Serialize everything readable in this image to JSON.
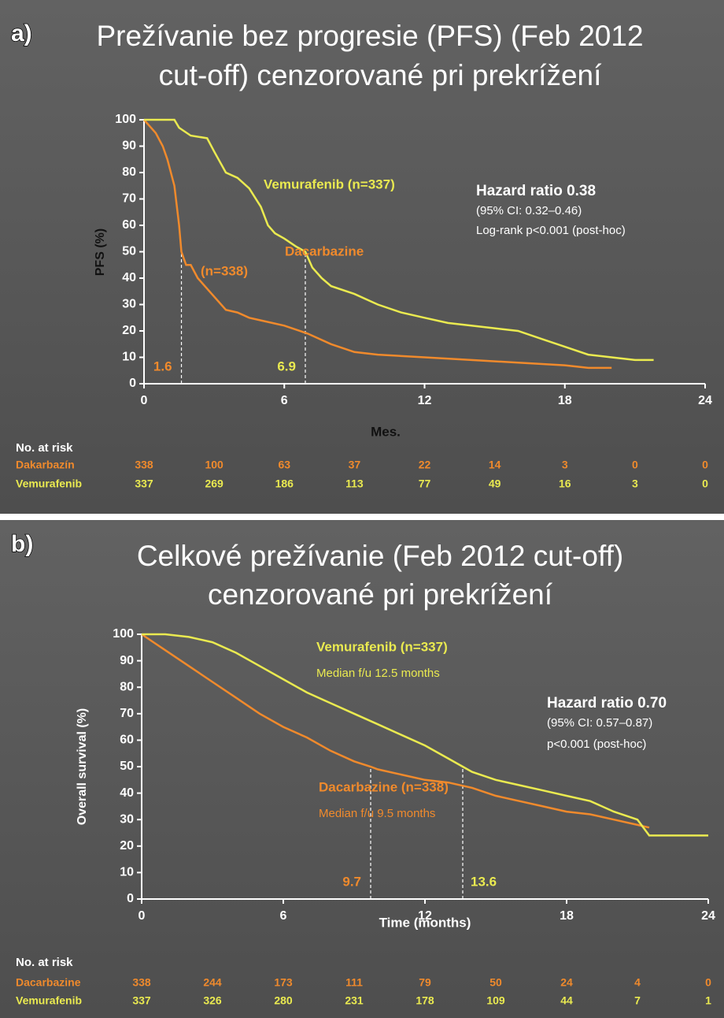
{
  "chart_data": [
    {
      "type": "line",
      "panel": "a)",
      "title": [
        "Prežívanie bez progresie (PFS)  (Feb 2012",
        "cut-off) cenzorované pri prekrížení"
      ],
      "xlabel": "Mes.",
      "ylabel": "PFS (%)",
      "xlim": [
        0,
        24
      ],
      "xticks": [
        0,
        6,
        12,
        18,
        24
      ],
      "ylim": [
        0,
        100
      ],
      "yticks": [
        0,
        10,
        20,
        30,
        40,
        50,
        60,
        70,
        80,
        90,
        100
      ],
      "series": [
        {
          "name": "Dacarbazine",
          "color": "#f08a2c",
          "median": 1.6,
          "x": [
            0,
            0.5,
            0.8,
            1,
            1.3,
            1.5,
            1.6,
            1.8,
            2,
            2.3,
            2.8,
            3.5,
            4,
            4.5,
            5,
            6,
            7,
            8,
            9,
            10,
            12,
            14,
            16,
            18,
            19,
            20
          ],
          "values": [
            100,
            95,
            90,
            85,
            75,
            60,
            50,
            45,
            45,
            40,
            35,
            28,
            27,
            25,
            24,
            22,
            19,
            15,
            12,
            11,
            10,
            9,
            8,
            7,
            6,
            6
          ]
        },
        {
          "name": "Vemurafenib",
          "color": "#eaea50",
          "median": 6.9,
          "x": [
            0,
            1.3,
            1.5,
            2,
            2.7,
            3,
            3.5,
            4,
            4.5,
            5,
            5.3,
            5.6,
            6,
            6.5,
            6.9,
            7.2,
            7.6,
            8,
            9,
            10,
            11,
            12,
            13,
            14,
            15,
            16,
            17,
            18,
            19,
            20,
            21,
            21.8
          ],
          "values": [
            100,
            100,
            97,
            94,
            93,
            88,
            80,
            78,
            74,
            67,
            60,
            57,
            55,
            52,
            50,
            44,
            40,
            37,
            34,
            30,
            27,
            25,
            23,
            22,
            21,
            20,
            17,
            14,
            11,
            10,
            9,
            9
          ]
        }
      ],
      "annotations": [
        "Vemurafenib (n=337)",
        "Dacarbazine",
        "(n=338)",
        "Hazard ratio 0.38",
        "(95% CI:  0.32–0.46)",
        "Log-rank p<0.001 (post-hoc)"
      ],
      "risk_table": {
        "title": "No. at risk",
        "rows": [
          {
            "name": "Dakarbazín",
            "values": [
              338,
              100,
              63,
              37,
              22,
              14,
              3,
              0,
              0
            ]
          },
          {
            "name": "Vemurafenib",
            "values": [
              337,
              269,
              186,
              113,
              77,
              49,
              16,
              3,
              0
            ]
          }
        ]
      }
    },
    {
      "type": "line",
      "panel": "b)",
      "title": [
        "Celkové prežívanie (Feb 2012 cut-off)",
        "cenzorované pri prekrížení"
      ],
      "xlabel": "Time (months)",
      "ylabel": "Overall survival (%)",
      "xlim": [
        0,
        24
      ],
      "xticks": [
        0,
        6,
        12,
        18,
        24
      ],
      "ylim": [
        0,
        100
      ],
      "yticks": [
        0,
        10,
        20,
        30,
        40,
        50,
        60,
        70,
        80,
        90,
        100
      ],
      "series": [
        {
          "name": "Dacarbazine",
          "color": "#f08a2c",
          "median": 9.7,
          "x": [
            0,
            0.5,
            1,
            2,
            3,
            4,
            5,
            6,
            7,
            8,
            9,
            9.7,
            10,
            11,
            12,
            13,
            14,
            15,
            16,
            17,
            18,
            19,
            20,
            21,
            21.5
          ],
          "values": [
            100,
            97,
            94,
            88,
            82,
            76,
            70,
            65,
            61,
            56,
            52,
            50,
            49,
            47,
            45,
            44,
            42,
            39,
            37,
            35,
            33,
            32,
            30,
            28,
            27
          ]
        },
        {
          "name": "Vemurafenib",
          "color": "#eaea50",
          "median": 13.6,
          "x": [
            0,
            1,
            2,
            3,
            4,
            5,
            6,
            7,
            8,
            9,
            10,
            11,
            12,
            13,
            13.6,
            14,
            15,
            16,
            17,
            18,
            19,
            20,
            21,
            21.5,
            24
          ],
          "values": [
            100,
            100,
            99,
            97,
            93,
            88,
            83,
            78,
            74,
            70,
            66,
            62,
            58,
            53,
            50,
            48,
            45,
            43,
            41,
            39,
            37,
            33,
            30,
            24,
            24
          ]
        }
      ],
      "annotations": [
        "Vemurafenib (n=337)",
        "Median  f/u 12.5 months",
        "Hazard ratio 0.70",
        "(95% CI:  0.57–0.87)",
        "p<0.001 (post-hoc)",
        "Dacarbazine (n=338)",
        "Median  f/u 9.5 months"
      ],
      "risk_table": {
        "title": "No. at risk",
        "rows": [
          {
            "name": "Dacarbazine",
            "values": [
              338,
              244,
              173,
              111,
              79,
              50,
              24,
              4,
              0
            ]
          },
          {
            "name": "Vemurafenib",
            "values": [
              337,
              326,
              280,
              231,
              178,
              109,
              44,
              7,
              1
            ]
          }
        ]
      }
    }
  ]
}
